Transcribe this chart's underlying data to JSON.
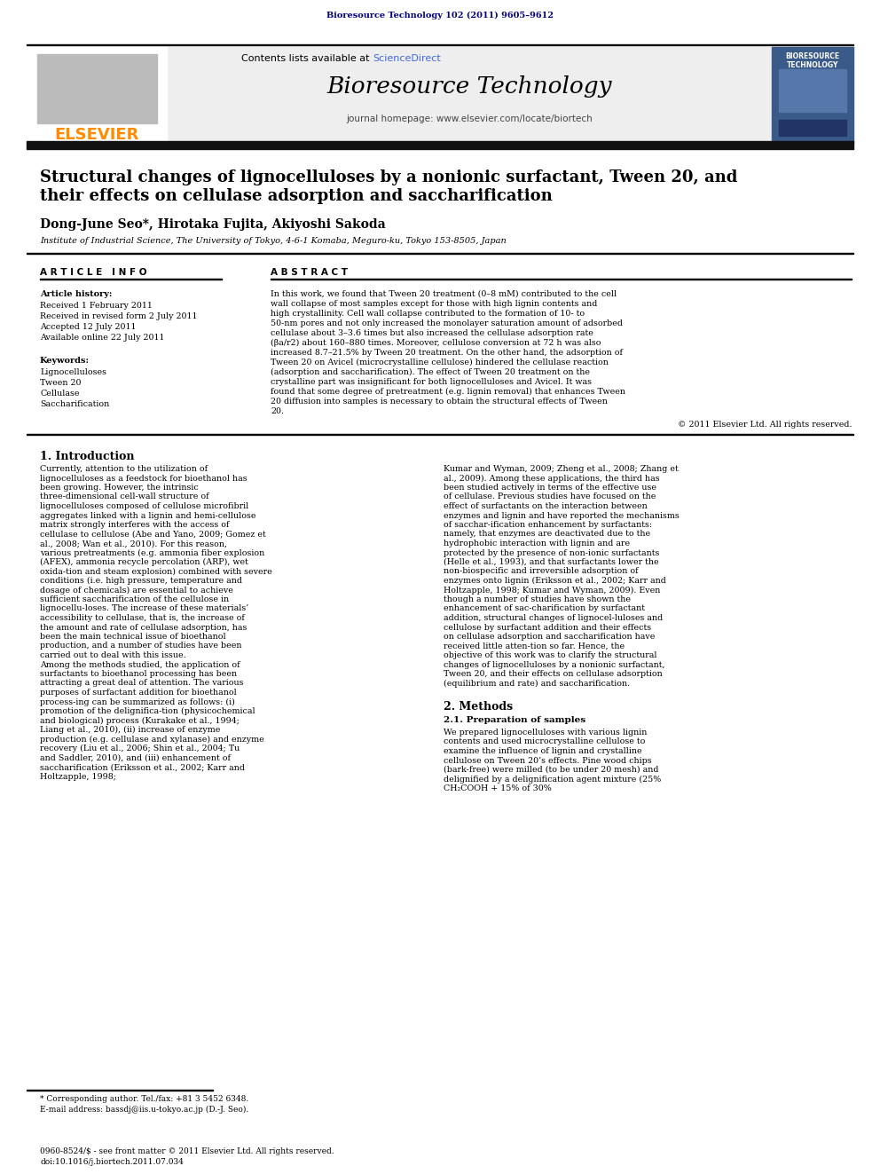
{
  "journal_ref": "Bioresource Technology 102 (2011) 9605–9612",
  "journal_name": "Bioresource Technology",
  "journal_homepage": "journal homepage: www.elsevier.com/locate/biortech",
  "contents_text": "Contents lists available at ScienceDirect",
  "elsevier_text": "ELSEVIER",
  "paper_title_line1": "Structural changes of lignocelluloses by a nonionic surfactant, Tween 20, and",
  "paper_title_line2": "their effects on cellulase adsorption and saccharification",
  "authors": "Dong-June Seo*, Hirotaka Fujita, Akiyoshi Sakoda",
  "affiliation": "Institute of Industrial Science, The University of Tokyo, 4-6-1 Komaba, Meguro-ku, Tokyo 153-8505, Japan",
  "article_info_header": "A R T I C L E   I N F O",
  "abstract_header": "A B S T R A C T",
  "article_history_label": "Article history:",
  "received_1": "Received 1 February 2011",
  "received_revised": "Received in revised form 2 July 2011",
  "accepted": "Accepted 12 July 2011",
  "available": "Available online 22 July 2011",
  "keywords_label": "Keywords:",
  "keywords": [
    "Lignocelluloses",
    "Tween 20",
    "Cellulase",
    "Saccharification"
  ],
  "abstract_text": "In this work, we found that Tween 20 treatment (0–8 mM) contributed to the cell wall collapse of most samples except for those with high lignin contents and high crystallinity. Cell wall collapse contributed to the formation of 10- to 50-nm pores and not only increased the monolayer saturation amount of adsorbed cellulase about 3–3.6 times but also increased the cellulase adsorption rate (βa/r2) about 160–880 times. Moreover, cellulose conversion at 72 h was also increased 8.7–21.5% by Tween 20 treatment. On the other hand, the adsorption of Tween 20 on Avicel (microcrystalline cellulose) hindered the cellulase reaction (adsorption and saccharification). The effect of Tween 20 treatment on the crystalline part was insignificant for both lignocelluloses and Avicel. It was found that some degree of pretreatment (e.g. lignin removal) that enhances Tween 20 diffusion into samples is necessary to obtain the structural effects of Tween 20.",
  "copyright": "© 2011 Elsevier Ltd. All rights reserved.",
  "section1_title": "1. Introduction",
  "section1_col1": "Currently, attention to the utilization of lignocelluloses as a feedstock for bioethanol has been growing. However, the intrinsic three-dimensional cell-wall structure of lignocelluloses composed of cellulose microfibril aggregates linked with a lignin and hemi-cellulose matrix strongly interferes with the access of cellulase to cellulose (Abe and Yano, 2009; Gomez et al., 2008; Wan et al., 2010). For this reason, various pretreatments (e.g. ammonia fiber explosion (AFEX), ammonia recycle percolation (ARP), wet oxida-tion and steam explosion) combined with severe conditions (i.e. high pressure, temperature and dosage of chemicals) are essential to achieve sufficient saccharification of the cellulose in lignocellu-loses. The increase of these materials’ accessibility to cellulase, that is, the increase of the amount and rate of cellulase adsorption, has been the main technical issue of bioethanol production, and a number of studies have been carried out to deal with this issue.\n Among the methods studied, the application of surfactants to bioethanol processing has been attracting a great deal of attention. The various purposes of surfactant addition for bioethanol process-ing can be summarized as follows: (i) promotion of the delignifica-tion (physicochemical and biological) process (Kurakake et al., 1994; Liang et al., 2010), (ii) increase of enzyme production (e.g. cellulase and xylanase) and enzyme recovery (Liu et al., 2006; Shin et al., 2004; Tu and Saddler, 2010), and (iii) enhancement of saccharification (Eriksson et al., 2002; Karr and Holtzapple, 1998;",
  "section1_col2": "Kumar and Wyman, 2009; Zheng et al., 2008; Zhang et al., 2009). Among these applications, the third has been studied actively in terms of the effective use of cellulase. Previous studies have focused on the effect of surfactants on the interaction between enzymes and lignin and have reported the mechanisms of sacchar-ification enhancement by surfactants: namely, that enzymes are deactivated due to the hydrophobic interaction with lignin and are protected by the presence of non-ionic surfactants (Helle et al., 1993), and that surfactants lower the non-biospecific and irreversible adsorption of enzymes onto lignin (Eriksson et al., 2002; Karr and Holtzapple, 1998; Kumar and Wyman, 2009). Even though a number of studies have shown the enhancement of sac-charification by surfactant addition, structural changes of lignocel-luloses and cellulose by surfactant addition and their effects on cellulase adsorption and saccharification have received little atten-tion so far. Hence, the objective of this work was to clarify the structural changes of lignocelluloses by a nonionic surfactant, Tween 20, and their effects on cellulase adsorption (equilibrium and rate) and saccharification.",
  "section2_title": "2. Methods",
  "section21_title": "2.1. Preparation of samples",
  "section21_text": "We prepared lignocelluloses with various lignin contents and used microcrystalline cellulose to examine the influence of lignin and crystalline cellulose on Tween 20’s effects. Pine wood chips (bark-free) were milled (to be under 20 mesh) and delignified by a delignification agent mixture (25% CH₂COOH + 15% of 30%",
  "footnote_star": "* Corresponding author. Tel./fax: +81 3 5452 6348.",
  "footnote_email": "E-mail address: bassdj@iis.u-tokyo.ac.jp (D.-J. Seo).",
  "footer_issn": "0960-8524/$ - see front matter © 2011 Elsevier Ltd. All rights reserved.",
  "footer_doi": "doi:10.1016/j.biortech.2011.07.034",
  "header_color": "#000080",
  "elsevier_color": "#FF8C00",
  "sciencedirect_color": "#4169E1",
  "header_bg": "#EEEEEE",
  "dark_bar_color": "#111111",
  "bg_color": "#FFFFFF"
}
